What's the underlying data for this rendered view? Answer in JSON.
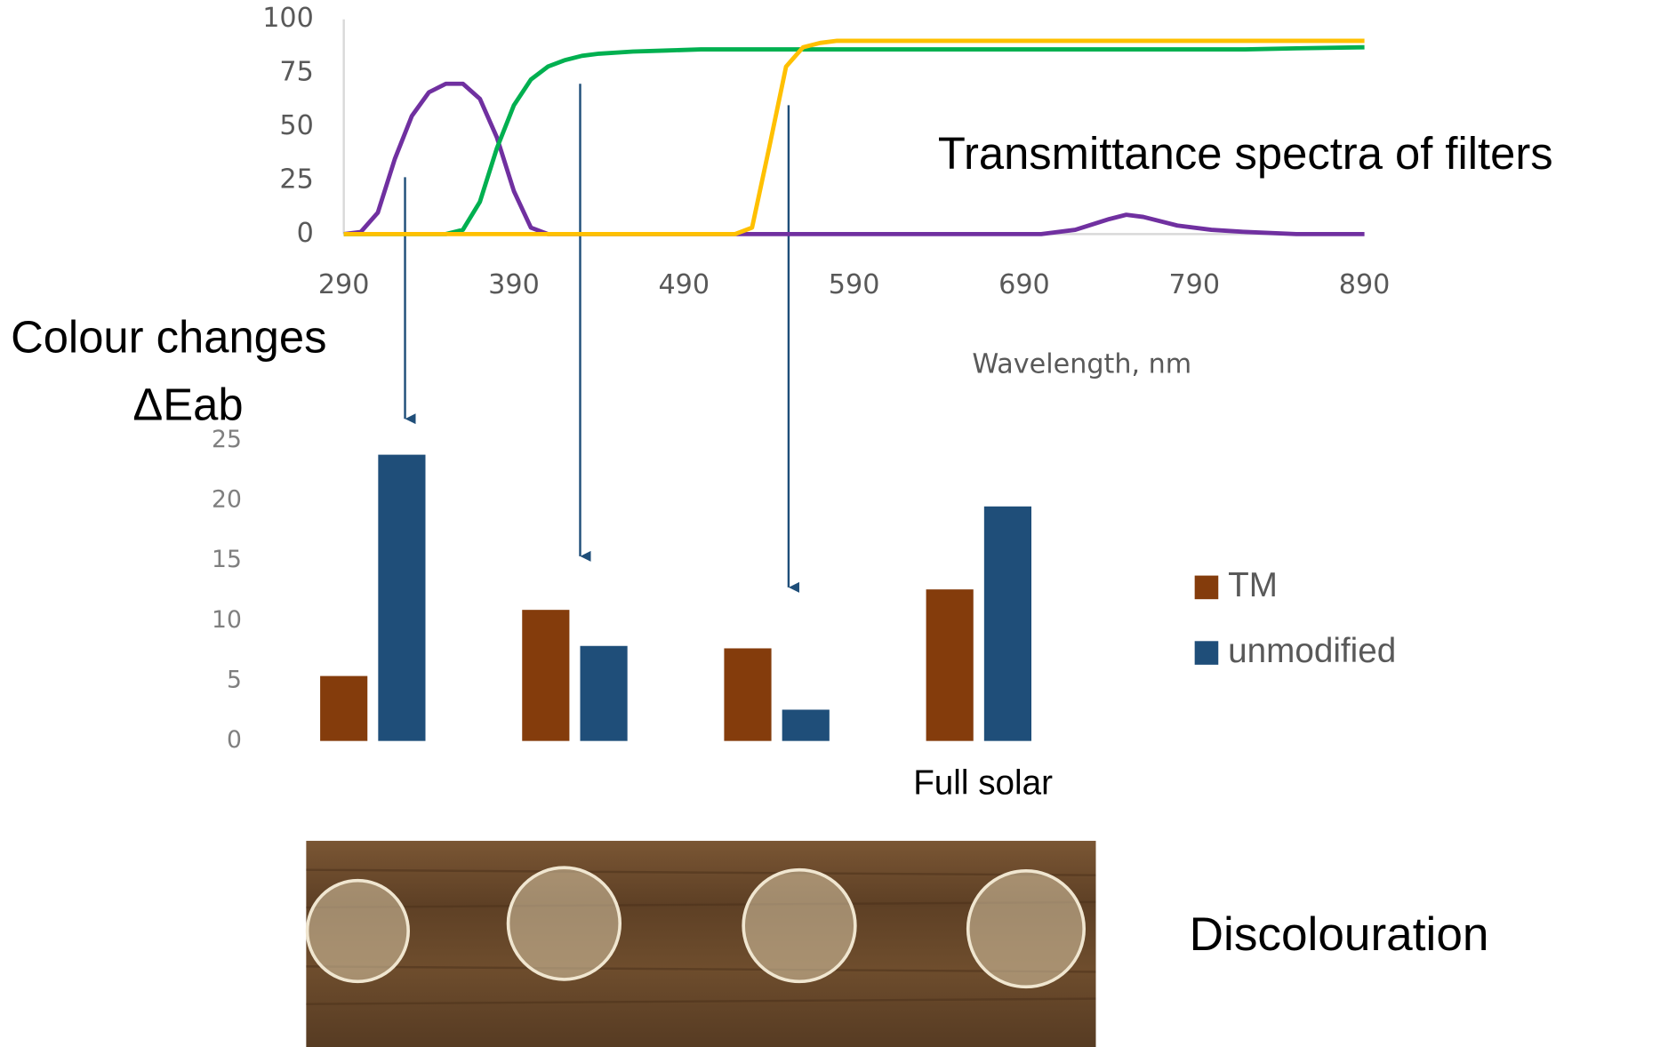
{
  "chart_data": [
    {
      "type": "line",
      "title": "Transmittance spectra of filters",
      "x_label": "Wavelength, nm",
      "x": [
        290,
        300,
        310,
        320,
        330,
        340,
        350,
        360,
        370,
        380,
        390,
        400,
        410,
        420,
        430,
        440,
        460,
        480,
        500,
        520,
        530,
        540,
        550,
        560,
        570,
        580,
        600,
        650,
        700,
        720,
        740,
        750,
        760,
        780,
        800,
        820,
        850,
        890
      ],
      "series": [
        {
          "color": "#7030a0",
          "values": [
            0,
            1,
            10,
            35,
            55,
            66,
            70,
            70,
            63,
            45,
            20,
            3,
            0,
            0,
            0,
            0,
            0,
            0,
            0,
            0,
            0,
            0,
            0,
            0,
            0,
            0,
            0,
            0,
            0,
            2,
            7,
            9,
            8,
            4,
            2,
            1,
            0,
            0
          ]
        },
        {
          "color": "#00b050",
          "values": [
            0,
            0,
            0,
            0,
            0,
            0,
            0,
            2,
            15,
            40,
            60,
            72,
            78,
            81,
            83,
            84,
            85,
            85.5,
            86,
            86,
            86,
            86,
            86,
            86,
            86,
            86,
            86,
            86,
            86,
            86,
            86,
            86,
            86,
            86,
            86,
            86,
            86.5,
            87
          ]
        },
        {
          "color": "#ffc000",
          "values": [
            0,
            0,
            0,
            0,
            0,
            0,
            0,
            0,
            0,
            0,
            0,
            0,
            0,
            0,
            0,
            0,
            0,
            0,
            0,
            0,
            3,
            40,
            78,
            87,
            89,
            90,
            90,
            90,
            90,
            90,
            90,
            90,
            90,
            90,
            90,
            90,
            90,
            90
          ]
        }
      ],
      "xlim": [
        290,
        890
      ],
      "xticks": [
        290,
        390,
        490,
        590,
        690,
        790,
        890
      ],
      "ylim": [
        0,
        100
      ],
      "yticks": [
        0,
        25,
        50,
        75,
        100
      ]
    },
    {
      "type": "bar",
      "title": "Colour changes",
      "subtitle": "ΔEab",
      "categories": [
        null,
        null,
        null,
        "Full solar"
      ],
      "series": [
        {
          "name": "TM",
          "color": "#843c0c",
          "values": [
            5.4,
            10.9,
            7.7,
            12.6
          ]
        },
        {
          "name": "unmodified",
          "color": "#1f4e79",
          "values": [
            23.8,
            7.9,
            2.6,
            19.5
          ]
        }
      ],
      "ylim": [
        0,
        25
      ],
      "yticks": [
        0,
        5,
        10,
        15,
        20,
        25
      ],
      "legend": "right"
    }
  ],
  "caption": "Discolouration"
}
